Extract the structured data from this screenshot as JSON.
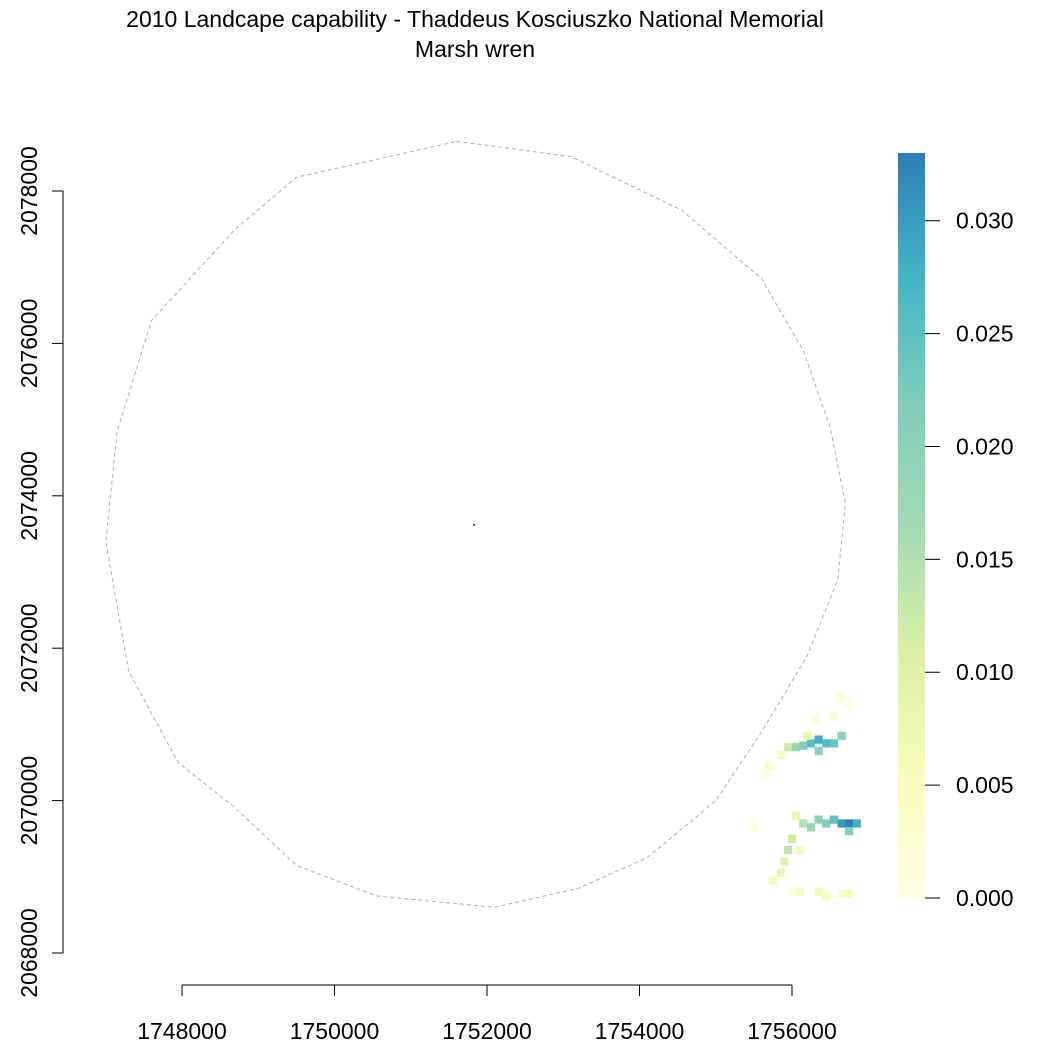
{
  "title": "2010 Landcape capability - Thaddeus Kosciuszko National Memorial",
  "subtitle": "Marsh wren",
  "chart_data": {
    "type": "heatmap",
    "title": "2010 Landcape capability - Thaddeus Kosciuszko National Memorial",
    "subtitle": "Marsh wren",
    "x_ticks": [
      1748000,
      1750000,
      1752000,
      1754000,
      1756000
    ],
    "x_tick_labels": [
      "1748000",
      "1750000",
      "1752000",
      "1754000",
      "1756000"
    ],
    "y_ticks": [
      2068000,
      2070000,
      2072000,
      2074000,
      2076000,
      2078000
    ],
    "y_tick_labels": [
      "2068000",
      "2070000",
      "2072000",
      "2074000",
      "2076000",
      "2078000"
    ],
    "xlim": [
      1746400,
      1757400
    ],
    "ylim": [
      2067800,
      2078800
    ],
    "legend": {
      "position": "right",
      "range": [
        0,
        0.033
      ],
      "ticks": [
        0.0,
        0.005,
        0.01,
        0.015,
        0.02,
        0.025,
        0.03
      ],
      "tick_labels": [
        "0.000",
        "0.005",
        "0.010",
        "0.015",
        "0.020",
        "0.025",
        "0.030"
      ],
      "colors": [
        "#ffffe5",
        "#f7fcb9",
        "#d9f0a3",
        "#a1dab4",
        "#7fcdbb",
        "#41b6c4",
        "#2c7fb8"
      ]
    },
    "boundary": {
      "style": "dashed",
      "color": "#b0b0b0",
      "vertices": [
        [
          1751600,
          2078650
        ],
        [
          1752000,
          2078600
        ],
        [
          1753100,
          2078450
        ],
        [
          1754550,
          2077750
        ],
        [
          1755600,
          2076850
        ],
        [
          1756150,
          2075900
        ],
        [
          1756500,
          2074900
        ],
        [
          1756700,
          2073900
        ],
        [
          1756600,
          2072900
        ],
        [
          1756200,
          2071900
        ],
        [
          1755600,
          2070900
        ],
        [
          1755000,
          2070000
        ],
        [
          1754100,
          2069250
        ],
        [
          1753200,
          2068850
        ],
        [
          1752100,
          2068600
        ],
        [
          1750550,
          2068750
        ],
        [
          1749500,
          2069150
        ],
        [
          1748700,
          2069900
        ],
        [
          1747950,
          2070500
        ],
        [
          1747300,
          2071700
        ],
        [
          1747000,
          2073400
        ],
        [
          1747150,
          2074850
        ],
        [
          1747600,
          2076300
        ],
        [
          1748700,
          2077500
        ],
        [
          1749500,
          2078180
        ],
        [
          1751600,
          2078650
        ]
      ]
    },
    "center_point": [
      1751830,
      2073620
    ],
    "cells": [
      {
        "x": 1755950,
        "y": 2070700,
        "value": 0.012
      },
      {
        "x": 1756050,
        "y": 2070700,
        "value": 0.018
      },
      {
        "x": 1756150,
        "y": 2070720,
        "value": 0.022
      },
      {
        "x": 1756250,
        "y": 2070750,
        "value": 0.025
      },
      {
        "x": 1756350,
        "y": 2070800,
        "value": 0.028
      },
      {
        "x": 1756450,
        "y": 2070750,
        "value": 0.026
      },
      {
        "x": 1756550,
        "y": 2070750,
        "value": 0.024
      },
      {
        "x": 1756650,
        "y": 2070850,
        "value": 0.02
      },
      {
        "x": 1756350,
        "y": 2070650,
        "value": 0.02
      },
      {
        "x": 1756200,
        "y": 2070850,
        "value": 0.008
      },
      {
        "x": 1756550,
        "y": 2071100,
        "value": 0.004
      },
      {
        "x": 1756650,
        "y": 2071350,
        "value": 0.003
      },
      {
        "x": 1756750,
        "y": 2071250,
        "value": 0.002
      },
      {
        "x": 1756300,
        "y": 2071050,
        "value": 0.002
      },
      {
        "x": 1755850,
        "y": 2070600,
        "value": 0.006
      },
      {
        "x": 1755700,
        "y": 2070450,
        "value": 0.004
      },
      {
        "x": 1756050,
        "y": 2069800,
        "value": 0.008
      },
      {
        "x": 1756150,
        "y": 2069700,
        "value": 0.015
      },
      {
        "x": 1756250,
        "y": 2069650,
        "value": 0.018
      },
      {
        "x": 1756350,
        "y": 2069750,
        "value": 0.02
      },
      {
        "x": 1756450,
        "y": 2069700,
        "value": 0.022
      },
      {
        "x": 1756550,
        "y": 2069750,
        "value": 0.025
      },
      {
        "x": 1756650,
        "y": 2069700,
        "value": 0.03
      },
      {
        "x": 1756750,
        "y": 2069700,
        "value": 0.033
      },
      {
        "x": 1756850,
        "y": 2069700,
        "value": 0.028
      },
      {
        "x": 1756750,
        "y": 2069600,
        "value": 0.022
      },
      {
        "x": 1756000,
        "y": 2069500,
        "value": 0.012
      },
      {
        "x": 1755950,
        "y": 2069350,
        "value": 0.014
      },
      {
        "x": 1755900,
        "y": 2069200,
        "value": 0.01
      },
      {
        "x": 1755850,
        "y": 2069050,
        "value": 0.008
      },
      {
        "x": 1755750,
        "y": 2068950,
        "value": 0.006
      },
      {
        "x": 1756100,
        "y": 2069350,
        "value": 0.006
      },
      {
        "x": 1756000,
        "y": 2068800,
        "value": 0.002
      },
      {
        "x": 1756100,
        "y": 2068800,
        "value": 0.004
      },
      {
        "x": 1756350,
        "y": 2068800,
        "value": 0.006
      },
      {
        "x": 1756450,
        "y": 2068750,
        "value": 0.005
      },
      {
        "x": 1756650,
        "y": 2068780,
        "value": 0.004
      },
      {
        "x": 1756750,
        "y": 2068780,
        "value": 0.006
      },
      {
        "x": 1755500,
        "y": 2069650,
        "value": 0.002
      },
      {
        "x": 1755650,
        "y": 2070350,
        "value": 0.002
      }
    ]
  }
}
